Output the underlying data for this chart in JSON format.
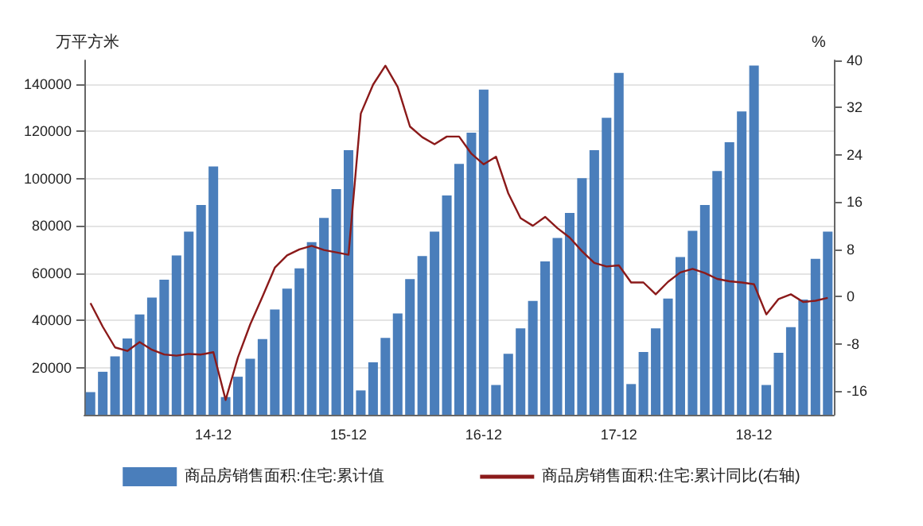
{
  "chart_data": {
    "type": "bar",
    "ylabel": "万平方米",
    "y2label": "%",
    "categories": [
      null,
      null,
      null,
      null,
      null,
      null,
      null,
      null,
      null,
      null,
      "14-12",
      null,
      null,
      null,
      null,
      null,
      null,
      null,
      null,
      null,
      null,
      "15-12",
      null,
      null,
      null,
      null,
      null,
      null,
      null,
      null,
      null,
      null,
      "16-12",
      null,
      null,
      null,
      null,
      null,
      null,
      null,
      null,
      null,
      null,
      "17-12",
      null,
      null,
      null,
      null,
      null,
      null,
      null,
      null,
      null,
      null,
      "18-12",
      null,
      null,
      null,
      null,
      null,
      null
    ],
    "series": [
      {
        "name": "商品房销售面积:住宅:累计值",
        "color": "#4a7ebb",
        "values": [
          9600,
          18200,
          24700,
          32300,
          42500,
          49600,
          57200,
          67400,
          77500,
          88800,
          105100,
          7500,
          16100,
          23700,
          32000,
          44600,
          53400,
          62000,
          73100,
          83300,
          95500,
          112000,
          10300,
          22200,
          32500,
          42900,
          57400,
          67200,
          77500,
          92800,
          106200,
          119400,
          137600,
          12600,
          25800,
          36600,
          48200,
          64900,
          74800,
          85400,
          100100,
          112000,
          125700,
          144700,
          13000,
          26600,
          36600,
          49200,
          66800,
          77900,
          88800,
          103200,
          115400,
          128400,
          147800,
          12600,
          26200,
          37100,
          48800,
          66000,
          77500
        ]
      },
      {
        "name": "商品房销售面积:住宅:累计同比(右轴)",
        "type": "line",
        "axis": "y2",
        "color": "#8b1a1a",
        "values": [
          -1.1,
          -5.1,
          -8.6,
          -9.2,
          -7.7,
          -9.0,
          -9.8,
          -10.0,
          -9.7,
          -9.8,
          -9.4,
          -17.5,
          -10.3,
          -4.7,
          0,
          4.9,
          7.0,
          8.0,
          8.6,
          7.9,
          7.5,
          7.1,
          31,
          35.9,
          39.1,
          35.5,
          28.8,
          27.0,
          25.8,
          27.1,
          27.1,
          24.2,
          22.4,
          23.7,
          17.5,
          13.3,
          12.0,
          13.5,
          11.6,
          10.0,
          7.7,
          5.7,
          5.1,
          5.3,
          2.4,
          2.4,
          0.4,
          2.5,
          4.1,
          4.7,
          4.0,
          3.0,
          2.6,
          2.4,
          2.1,
          -3.0,
          -0.4,
          0.4,
          -0.9,
          -0.7,
          -0.2
        ]
      }
    ],
    "ylim": [
      0,
      150000
    ],
    "yticks": [
      20000,
      40000,
      60000,
      80000,
      100000,
      120000,
      140000
    ],
    "y2lim": [
      -20,
      40
    ],
    "y2ticks": [
      -16,
      -8,
      0,
      8,
      16,
      24,
      32,
      40
    ],
    "grid": "y",
    "legend": "bottom",
    "marker": "none",
    "line_style": "solid"
  }
}
